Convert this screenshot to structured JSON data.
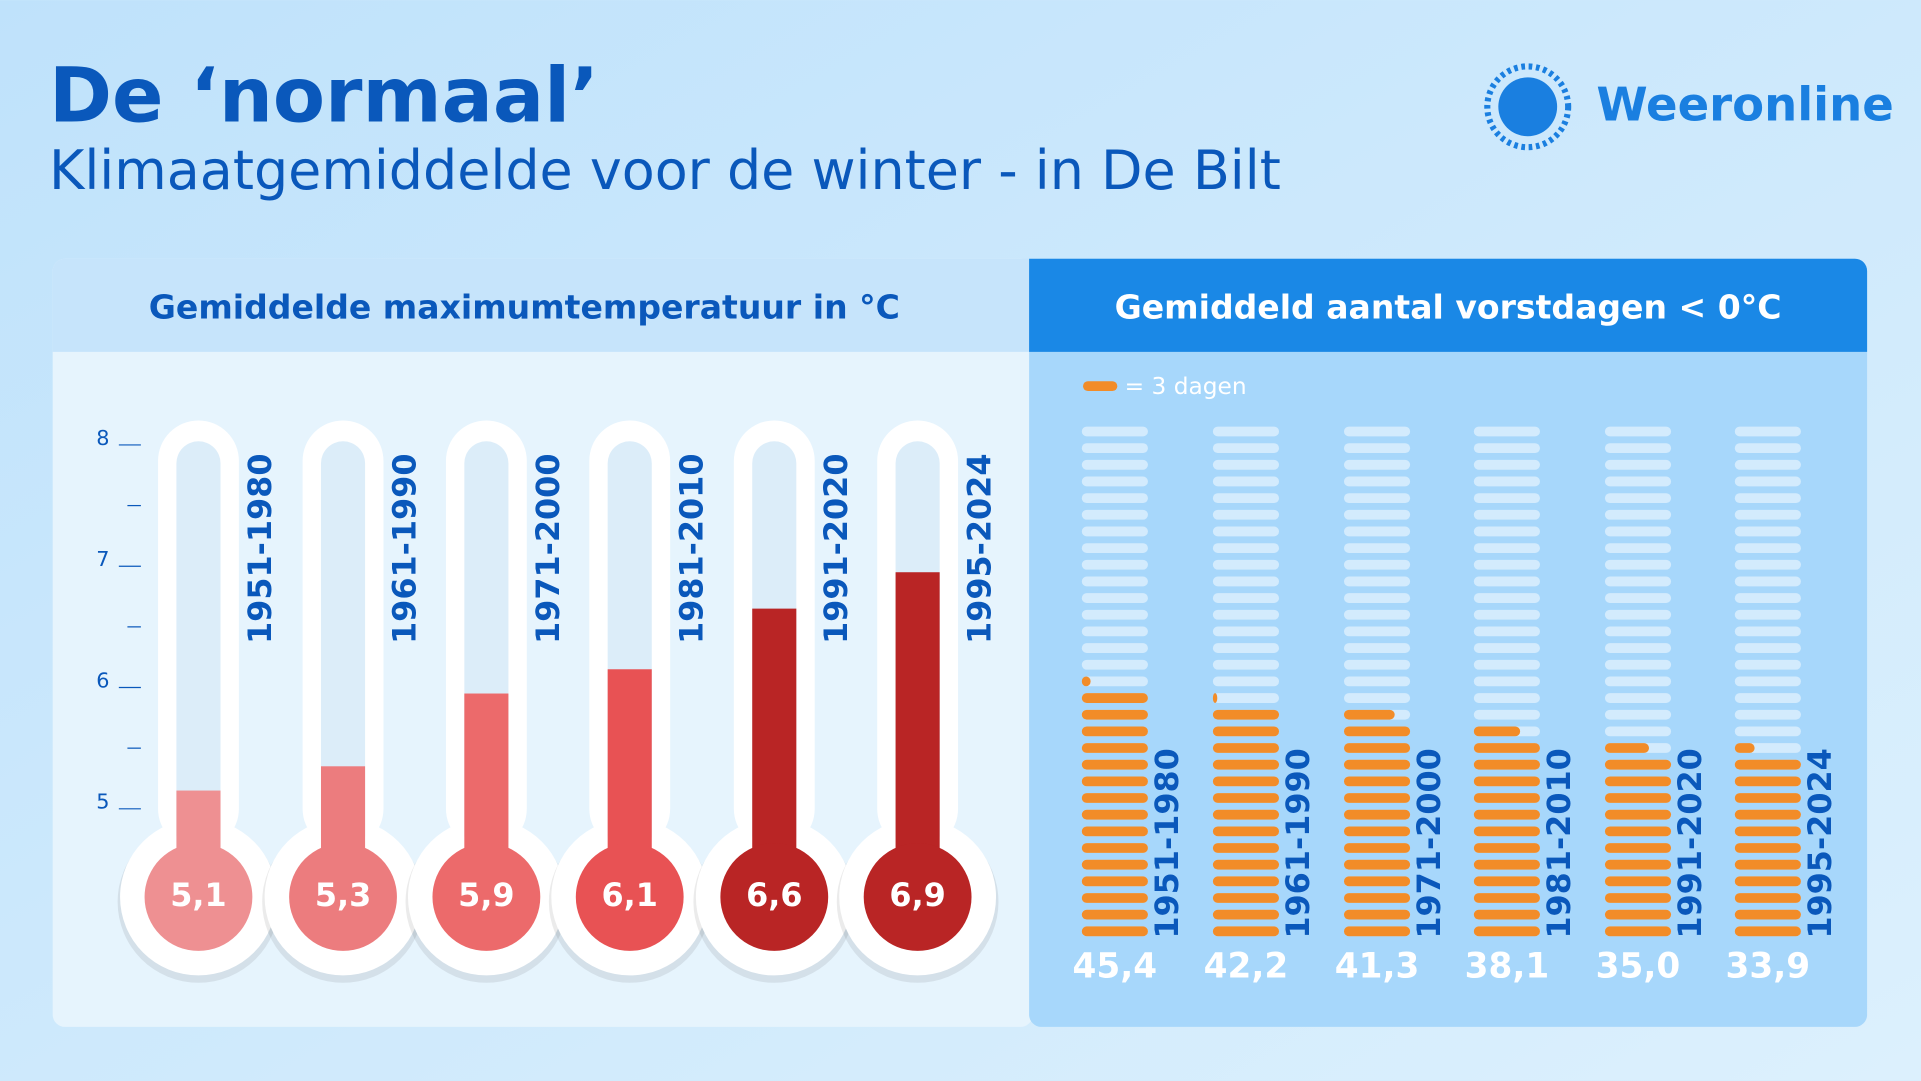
{
  "header": {
    "title": "De ‘normaal’",
    "subtitle": "Klimaatgemiddelde voor de winter - in De Bilt",
    "brand": "Weeronline"
  },
  "chart_data": [
    {
      "type": "thermometer",
      "title": "Gemiddelde maximumtemperatuur in °C",
      "categories": [
        "1951-1980",
        "1961-1990",
        "1971-2000",
        "1981-2010",
        "1991-2020",
        "1995-2024"
      ],
      "values": [
        5.1,
        5.3,
        5.9,
        6.1,
        6.6,
        6.9
      ],
      "value_labels": [
        "5,1",
        "5,3",
        "5,9",
        "6,1",
        "6,6",
        "6,9"
      ],
      "colors": [
        "#ee9092",
        "#ec7c7e",
        "#ec6a6b",
        "#e85254",
        "#b92525",
        "#b92525"
      ],
      "ylim": [
        5,
        8
      ],
      "yticks": [
        5,
        6,
        7,
        8
      ],
      "minor_yticks": [
        5.5,
        6.5,
        7.5
      ]
    },
    {
      "type": "pictogram",
      "title": "Gemiddeld aantal vorstdagen < 0°C",
      "categories": [
        "1951-1980",
        "1961-1990",
        "1971-2000",
        "1981-2010",
        "1991-2020",
        "1995-2024"
      ],
      "values": [
        45.4,
        42.2,
        41.3,
        38.1,
        35.0,
        33.9
      ],
      "value_labels": [
        "45,4",
        "42,2",
        "41,3",
        "38,1",
        "35,0",
        "33,9"
      ],
      "unit": 3,
      "legend_label": "= 3 dagen",
      "color": "#f28c28"
    }
  ]
}
